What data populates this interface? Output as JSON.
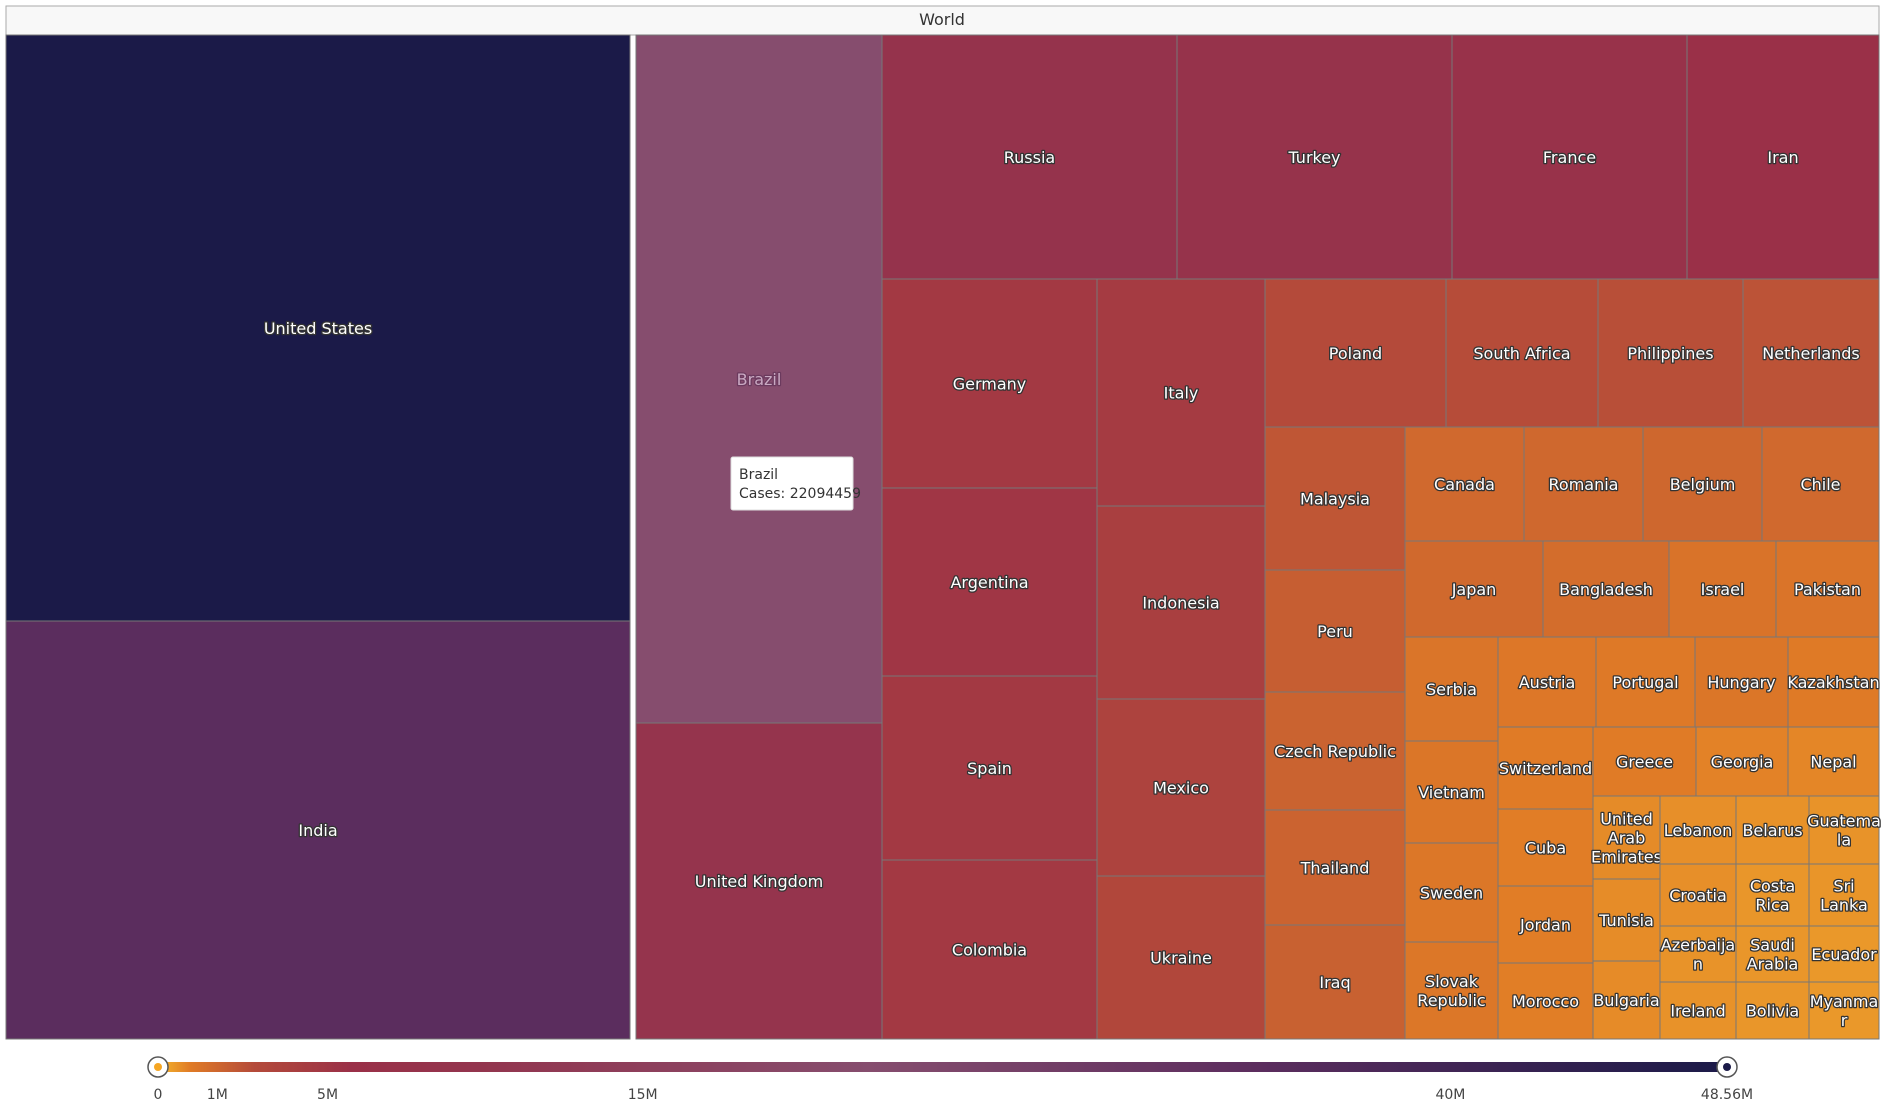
{
  "chart_data": {
    "type": "treemap",
    "root_label": "World",
    "value_name": "Cases",
    "color_scale": {
      "min": 0,
      "max": 48560000,
      "ticks": [
        {
          "value": 0,
          "label": "0"
        },
        {
          "value": 1000000,
          "label": "1M"
        },
        {
          "value": 5000000,
          "label": "5M"
        },
        {
          "value": 15000000,
          "label": "15M"
        },
        {
          "value": 40000000,
          "label": "40M"
        },
        {
          "value": 48560000,
          "label": "48.56M"
        }
      ],
      "stops": [
        {
          "value": 0,
          "color": "#f5b82e"
        },
        {
          "value": 1000000,
          "color": "#e07b26"
        },
        {
          "value": 3000000,
          "color": "#b44a3a"
        },
        {
          "value": 6000000,
          "color": "#9a3048"
        },
        {
          "value": 10000000,
          "color": "#93354e"
        },
        {
          "value": 22000000,
          "color": "#864d6e"
        },
        {
          "value": 34000000,
          "color": "#5c2d5e"
        },
        {
          "value": 48560000,
          "color": "#1b1a48"
        }
      ]
    },
    "tooltip": {
      "country": "Brazil",
      "label": "Cases: 22094459"
    },
    "countries": [
      {
        "name": "United States",
        "label": "United States",
        "value": 48560000
      },
      {
        "name": "India",
        "label": "India",
        "value": 34200000
      },
      {
        "name": "Brazil",
        "label": "Brazil",
        "value": 22094459
      },
      {
        "name": "United Kingdom",
        "label": "United Kingdom",
        "value": 9100000
      },
      {
        "name": "Russia",
        "label": "Russia",
        "value": 8700000
      },
      {
        "name": "Turkey",
        "label": "Turkey",
        "value": 8100000
      },
      {
        "name": "France",
        "label": "France",
        "value": 7200000
      },
      {
        "name": "Iran",
        "label": "Iran",
        "value": 5950000
      },
      {
        "name": "Germany",
        "label": "Germany",
        "value": 4950000
      },
      {
        "name": "Argentina",
        "label": "Argentina",
        "value": 5300000
      },
      {
        "name": "Spain",
        "label": "Spain",
        "value": 5000000
      },
      {
        "name": "Colombia",
        "label": "Colombia",
        "value": 5000000
      },
      {
        "name": "Italy",
        "label": "Italy",
        "value": 4750000
      },
      {
        "name": "Indonesia",
        "label": "Indonesia",
        "value": 4240000
      },
      {
        "name": "Mexico",
        "label": "Mexico",
        "value": 3800000
      },
      {
        "name": "Ukraine",
        "label": "Ukraine",
        "value": 3300000
      },
      {
        "name": "Poland",
        "label": "Poland",
        "value": 3000000
      },
      {
        "name": "South Africa",
        "label": "South Africa",
        "value": 2920000
      },
      {
        "name": "Philippines",
        "label": "Philippines",
        "value": 2800000
      },
      {
        "name": "Netherlands",
        "label": "Netherlands",
        "value": 2650000
      },
      {
        "name": "Malaysia",
        "label": "Malaysia",
        "value": 2500000
      },
      {
        "name": "Peru",
        "label": "Peru",
        "value": 2200000
      },
      {
        "name": "Czech Republic",
        "label": "Czech Republic",
        "value": 2000000
      },
      {
        "name": "Thailand",
        "label": "Thailand",
        "value": 1960000
      },
      {
        "name": "Iraq",
        "label": "Iraq",
        "value": 2080000
      },
      {
        "name": "Canada",
        "label": "Canada",
        "value": 1750000
      },
      {
        "name": "Romania",
        "label": "Romania",
        "value": 1780000
      },
      {
        "name": "Belgium",
        "label": "Belgium",
        "value": 1800000
      },
      {
        "name": "Chile",
        "label": "Chile",
        "value": 1750000
      },
      {
        "name": "Japan",
        "label": "Japan",
        "value": 1720000
      },
      {
        "name": "Bangladesh",
        "label": "Bangladesh",
        "value": 1575000
      },
      {
        "name": "Israel",
        "label": "Israel",
        "value": 1340000
      },
      {
        "name": "Pakistan",
        "label": "Pakistan",
        "value": 1280000
      },
      {
        "name": "Serbia",
        "label": "Serbia",
        "value": 1260000
      },
      {
        "name": "Vietnam",
        "label": "Vietnam",
        "value": 1220000
      },
      {
        "name": "Sweden",
        "label": "Sweden",
        "value": 1180000
      },
      {
        "name": "Slovak Republic",
        "label": "Slovak\nRepublic",
        "value": 1160000
      },
      {
        "name": "Austria",
        "label": "Austria",
        "value": 1150000
      },
      {
        "name": "Portugal",
        "label": "Portugal",
        "value": 1100000
      },
      {
        "name": "Hungary",
        "label": "Hungary",
        "value": 1210000
      },
      {
        "name": "Kazakhstan",
        "label": "Kazakhstan",
        "value": 1040000
      },
      {
        "name": "Switzerland",
        "label": "Switzerland",
        "value": 1020000
      },
      {
        "name": "Greece",
        "label": "Greece",
        "value": 1010000
      },
      {
        "name": "Georgia",
        "label": "Georgia",
        "value": 880000
      },
      {
        "name": "Nepal",
        "label": "Nepal",
        "value": 820000
      },
      {
        "name": "Cuba",
        "label": "Cuba",
        "value": 960000
      },
      {
        "name": "Jordan",
        "label": "Jordan",
        "value": 960000
      },
      {
        "name": "Morocco",
        "label": "Morocco",
        "value": 950000
      },
      {
        "name": "United Arab Emirates",
        "label": "United\nArab\nEmirates",
        "value": 742000
      },
      {
        "name": "Tunisia",
        "label": "Tunisia",
        "value": 718000
      },
      {
        "name": "Bulgaria",
        "label": "Bulgaria",
        "value": 730000
      },
      {
        "name": "Lebanon",
        "label": "Lebanon",
        "value": 680000
      },
      {
        "name": "Belarus",
        "label": "Belarus",
        "value": 620000
      },
      {
        "name": "Guatemala",
        "label": "Guatema\nla",
        "value": 610000
      },
      {
        "name": "Croatia",
        "label": "Croatia",
        "value": 670000
      },
      {
        "name": "Costa Rica",
        "label": "Costa\nRica",
        "value": 560000
      },
      {
        "name": "Sri Lanka",
        "label": "Sri\nLanka",
        "value": 570000
      },
      {
        "name": "Azerbaijan",
        "label": "Azerbaija\nn",
        "value": 600000
      },
      {
        "name": "Saudi Arabia",
        "label": "Saudi\nArabia",
        "value": 550000
      },
      {
        "name": "Ecuador",
        "label": "Ecuador",
        "value": 530000
      },
      {
        "name": "Ireland",
        "label": "Ireland",
        "value": 620000
      },
      {
        "name": "Bolivia",
        "label": "Bolivia",
        "value": 560000
      },
      {
        "name": "Myanmar",
        "label": "Myanma\nr",
        "value": 520000
      }
    ]
  }
}
